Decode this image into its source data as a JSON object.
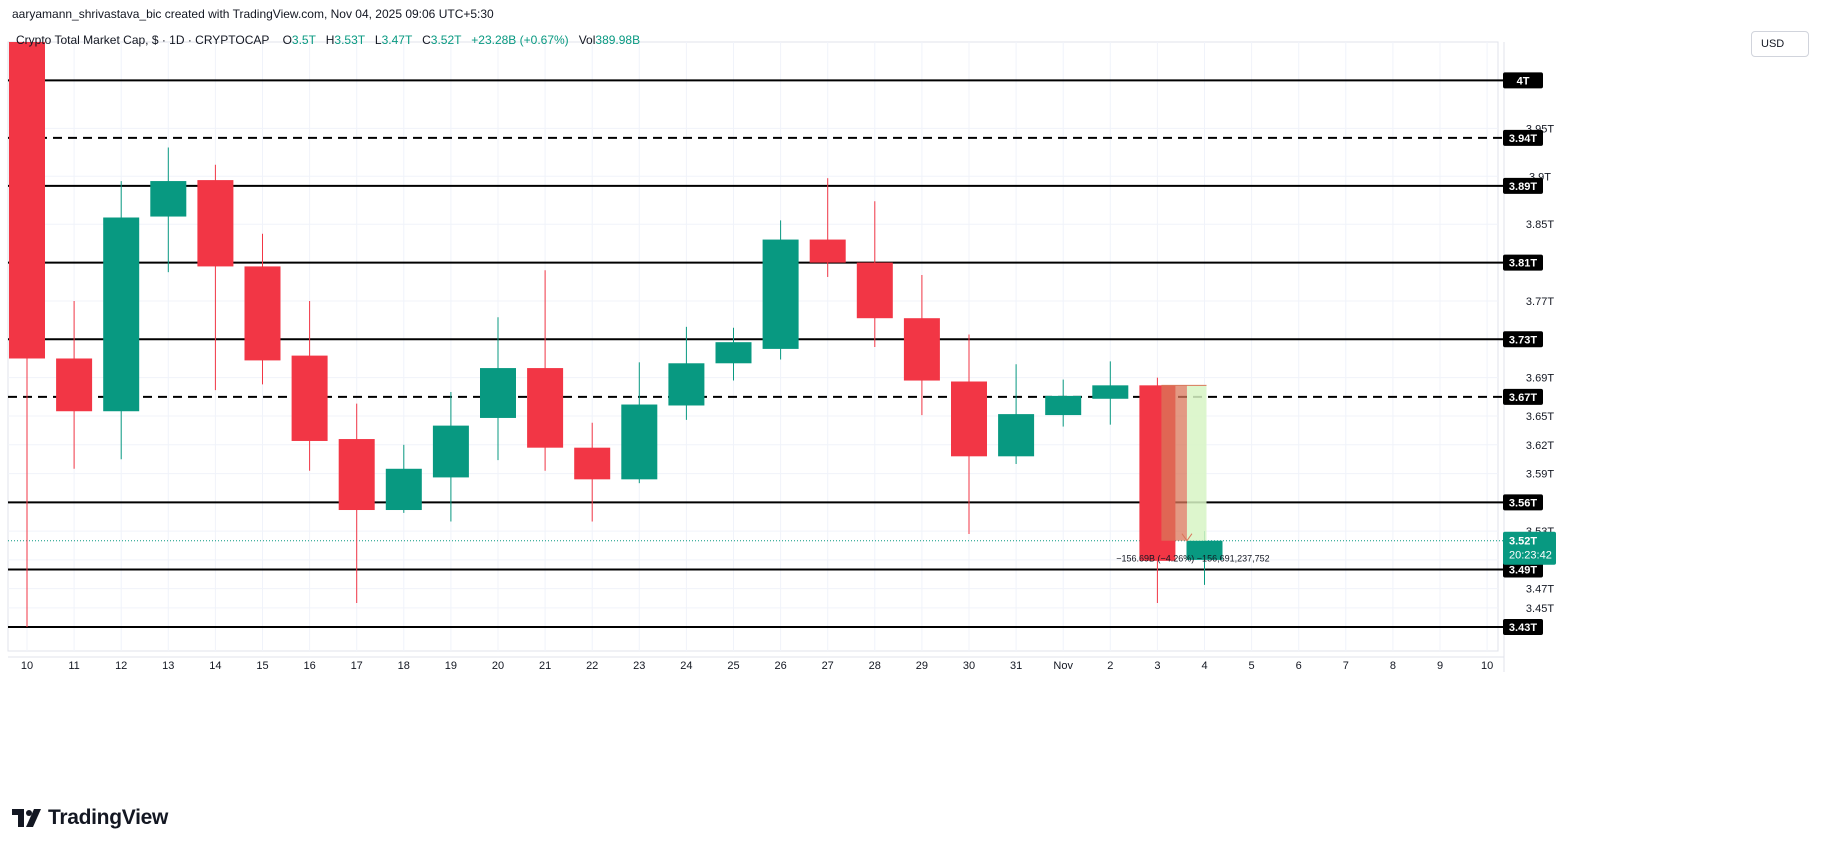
{
  "header": {
    "credit": "aaryamann_shrivastava_bic created with TradingView.com, Nov 04, 2025 09:06 UTC+5:30"
  },
  "legend": {
    "symbol": "Crypto Total Market Cap, $ · 1D · CRYPTOCAP",
    "open_label": "O",
    "open": "3.5T",
    "high_label": "H",
    "high": "3.53T",
    "low_label": "L",
    "low": "3.47T",
    "close_label": "C",
    "close": "3.52T",
    "change": "+23.28B (+0.67%)",
    "vol_label": "Vol",
    "vol": "389.98B"
  },
  "currency_button": "USD",
  "brand": {
    "name": "TradingView"
  },
  "colors": {
    "up": "#089981",
    "down": "#f23645",
    "grid": "#f0f3fa",
    "level": "#000000",
    "measure_fill": "#d7f5c4",
    "measure_bear": "#d9775a"
  },
  "chart_data": {
    "type": "candlestick",
    "title": "Crypto Total Market Cap, $ · 1D · CRYPTOCAP",
    "currency": "USD",
    "y_range": [
      3.405,
      4.04
    ],
    "y_ticks": [
      {
        "value": 3.95,
        "label": "3.95T"
      },
      {
        "value": 3.9,
        "label": "3.9T"
      },
      {
        "value": 3.85,
        "label": "3.85T"
      },
      {
        "value": 3.77,
        "label": "3.77T"
      },
      {
        "value": 3.69,
        "label": "3.69T"
      },
      {
        "value": 3.65,
        "label": "3.65T"
      },
      {
        "value": 3.62,
        "label": "3.62T"
      },
      {
        "value": 3.59,
        "label": "3.59T"
      },
      {
        "value": 3.53,
        "label": "3.53T"
      },
      {
        "value": 3.5,
        "label": "3.5T"
      },
      {
        "value": 3.47,
        "label": "3.47T"
      },
      {
        "value": 3.45,
        "label": "3.45T"
      }
    ],
    "x_labels": [
      "10",
      "11",
      "12",
      "13",
      "14",
      "15",
      "16",
      "17",
      "18",
      "19",
      "20",
      "21",
      "22",
      "23",
      "24",
      "25",
      "26",
      "27",
      "28",
      "29",
      "30",
      "31",
      "Nov",
      "2",
      "3",
      "4",
      "5",
      "6",
      "7",
      "8",
      "9",
      "10"
    ],
    "candles": [
      {
        "date": "10",
        "open": 4.06,
        "high": 4.06,
        "low": 3.43,
        "close": 3.71
      },
      {
        "date": "11",
        "open": 3.71,
        "high": 3.77,
        "low": 3.595,
        "close": 3.655
      },
      {
        "date": "12",
        "open": 3.655,
        "high": 3.895,
        "low": 3.605,
        "close": 3.857
      },
      {
        "date": "13",
        "open": 3.858,
        "high": 3.93,
        "low": 3.8,
        "close": 3.895
      },
      {
        "date": "14",
        "open": 3.896,
        "high": 3.912,
        "low": 3.677,
        "close": 3.806
      },
      {
        "date": "15",
        "open": 3.806,
        "high": 3.84,
        "low": 3.683,
        "close": 3.708
      },
      {
        "date": "16",
        "open": 3.713,
        "high": 3.77,
        "low": 3.593,
        "close": 3.624
      },
      {
        "date": "17",
        "open": 3.626,
        "high": 3.663,
        "low": 3.455,
        "close": 3.552
      },
      {
        "date": "18",
        "open": 3.552,
        "high": 3.62,
        "low": 3.549,
        "close": 3.595
      },
      {
        "date": "19",
        "open": 3.586,
        "high": 3.675,
        "low": 3.54,
        "close": 3.64
      },
      {
        "date": "20",
        "open": 3.648,
        "high": 3.753,
        "low": 3.604,
        "close": 3.7
      },
      {
        "date": "21",
        "open": 3.7,
        "high": 3.802,
        "low": 3.593,
        "close": 3.617
      },
      {
        "date": "22",
        "open": 3.617,
        "high": 3.643,
        "low": 3.54,
        "close": 3.584
      },
      {
        "date": "23",
        "open": 3.584,
        "high": 3.706,
        "low": 3.58,
        "close": 3.662
      },
      {
        "date": "24",
        "open": 3.661,
        "high": 3.743,
        "low": 3.646,
        "close": 3.705
      },
      {
        "date": "25",
        "open": 3.705,
        "high": 3.742,
        "low": 3.687,
        "close": 3.727
      },
      {
        "date": "26",
        "open": 3.72,
        "high": 3.854,
        "low": 3.709,
        "close": 3.834
      },
      {
        "date": "27",
        "open": 3.834,
        "high": 3.898,
        "low": 3.795,
        "close": 3.81
      },
      {
        "date": "28",
        "open": 3.81,
        "high": 3.874,
        "low": 3.722,
        "close": 3.752
      },
      {
        "date": "29",
        "open": 3.752,
        "high": 3.797,
        "low": 3.651,
        "close": 3.687
      },
      {
        "date": "30",
        "open": 3.686,
        "high": 3.735,
        "low": 3.527,
        "close": 3.608
      },
      {
        "date": "31",
        "open": 3.608,
        "high": 3.704,
        "low": 3.6,
        "close": 3.652
      },
      {
        "date": "Nov",
        "open": 3.651,
        "high": 3.688,
        "low": 3.639,
        "close": 3.671
      },
      {
        "date": "2",
        "open": 3.668,
        "high": 3.707,
        "low": 3.641,
        "close": 3.682
      },
      {
        "date": "3",
        "open": 3.682,
        "high": 3.69,
        "low": 3.455,
        "close": 3.499
      },
      {
        "date": "4",
        "open": 3.5,
        "high": 3.53,
        "low": 3.474,
        "close": 3.52
      }
    ],
    "levels": [
      {
        "value": 4.0,
        "label": "4T",
        "style": "solid"
      },
      {
        "value": 3.94,
        "label": "3.94T",
        "style": "dashed"
      },
      {
        "value": 3.89,
        "label": "3.89T",
        "style": "solid"
      },
      {
        "value": 3.81,
        "label": "3.81T",
        "style": "solid"
      },
      {
        "value": 3.73,
        "label": "3.73T",
        "style": "solid"
      },
      {
        "value": 3.67,
        "label": "3.67T",
        "style": "dashed"
      },
      {
        "value": 3.56,
        "label": "3.56T",
        "style": "solid"
      },
      {
        "value": 3.49,
        "label": "3.49T",
        "style": "solid"
      },
      {
        "value": 3.43,
        "label": "3.43T",
        "style": "solid"
      }
    ],
    "last_price": {
      "value": 3.52,
      "label": "3.52T",
      "countdown": "20:23:42"
    },
    "measure": {
      "from_date": "3",
      "to_date": "4",
      "from_value": 3.682,
      "to_value": 3.52,
      "label": "−156.69B (−4.26%) −156,691,237,752"
    },
    "grid": true
  }
}
